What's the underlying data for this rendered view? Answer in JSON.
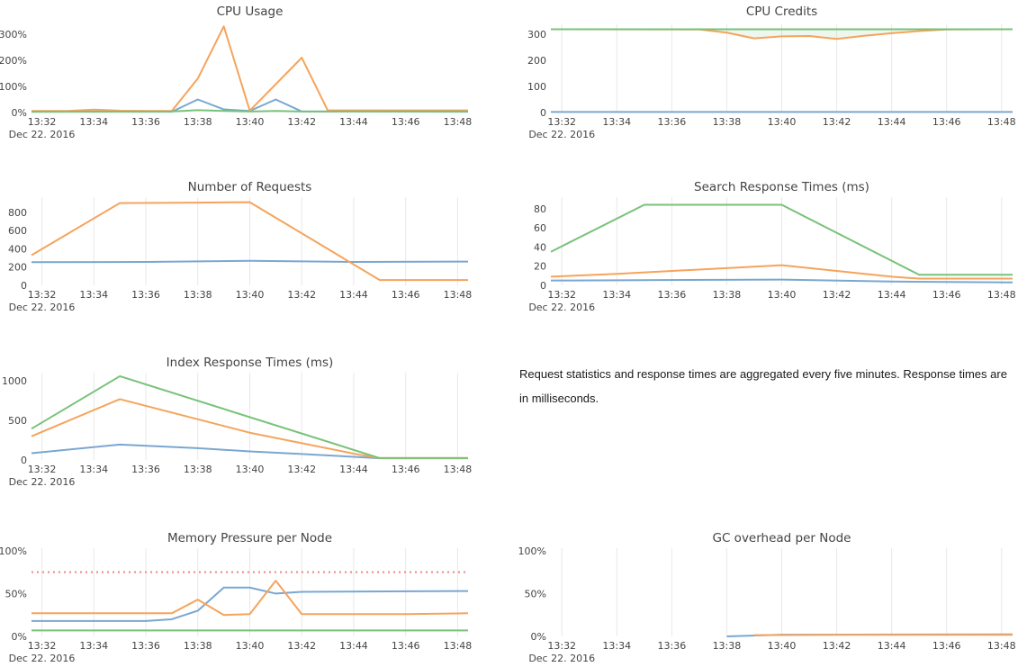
{
  "page": {
    "background": "#ffffff"
  },
  "note": {
    "text": "Request statistics and response times are aggregated every five minutes. Response times are in milliseconds."
  },
  "colors": {
    "blue": "#7aa7d2",
    "orange": "#f5a45c",
    "green": "#78c279",
    "threshold": "#ee8585",
    "grid": "#e8e8e8",
    "text": "#444444",
    "tick_text": "#444444"
  },
  "axis": {
    "date_label": "Dec 22. 2016",
    "x_range": [
      31.6,
      48.4
    ],
    "x_ticks": [
      {
        "m": 32,
        "label": "13:32"
      },
      {
        "m": 34,
        "label": "13:34"
      },
      {
        "m": 36,
        "label": "13:36"
      },
      {
        "m": 38,
        "label": "13:38"
      },
      {
        "m": 40,
        "label": "13:40"
      },
      {
        "m": 42,
        "label": "13:42"
      },
      {
        "m": 44,
        "label": "13:44"
      },
      {
        "m": 46,
        "label": "13:46"
      },
      {
        "m": 48,
        "label": "13:48"
      }
    ]
  },
  "chart_data": [
    {
      "id": "cpu-usage",
      "type": "line",
      "title": "CPU Usage",
      "col": "left",
      "row": 0,
      "grid": false,
      "ylim": [
        0,
        338
      ],
      "y_ticks": [
        {
          "value": 0,
          "label": "0%"
        },
        {
          "value": 100,
          "label": "100%"
        },
        {
          "value": 200,
          "label": "200%"
        },
        {
          "value": 300,
          "label": "300%"
        }
      ],
      "series": [
        {
          "name": "blue",
          "color_key": "blue",
          "points": [
            [
              31.6,
              3
            ],
            [
              37,
              3
            ],
            [
              38,
              50
            ],
            [
              39,
              12
            ],
            [
              40,
              6
            ],
            [
              41,
              50
            ],
            [
              42,
              4
            ],
            [
              48.4,
              3
            ]
          ]
        },
        {
          "name": "orange",
          "color_key": "orange",
          "points": [
            [
              31.6,
              6
            ],
            [
              33,
              6
            ],
            [
              34,
              11
            ],
            [
              35,
              7
            ],
            [
              36,
              6
            ],
            [
              37,
              6
            ],
            [
              38,
              130
            ],
            [
              39,
              330
            ],
            [
              40,
              7
            ],
            [
              42,
              210
            ],
            [
              43,
              8
            ],
            [
              44,
              8
            ],
            [
              48.4,
              8
            ]
          ]
        },
        {
          "name": "green",
          "color_key": "green",
          "points": [
            [
              31.6,
              3
            ],
            [
              37,
              4
            ],
            [
              38,
              9
            ],
            [
              39,
              6
            ],
            [
              40,
              4
            ],
            [
              41,
              6
            ],
            [
              42,
              4
            ],
            [
              48.4,
              4
            ]
          ]
        }
      ]
    },
    {
      "id": "cpu-credits",
      "type": "line",
      "title": "CPU Credits",
      "col": "right",
      "row": 0,
      "grid": true,
      "ylim": [
        0,
        338
      ],
      "y_ticks": [
        {
          "value": 0,
          "label": "0"
        },
        {
          "value": 100,
          "label": "100"
        },
        {
          "value": 200,
          "label": "200"
        },
        {
          "value": 300,
          "label": "300"
        }
      ],
      "series": [
        {
          "name": "blue",
          "color_key": "blue",
          "points": [
            [
              31.6,
              2
            ],
            [
              48.4,
              2
            ]
          ]
        },
        {
          "name": "orange",
          "color_key": "orange",
          "fill_above": true,
          "points": [
            [
              31.6,
              319
            ],
            [
              37,
              318
            ],
            [
              38,
              306
            ],
            [
              39,
              284
            ],
            [
              40,
              292
            ],
            [
              41,
              293
            ],
            [
              42,
              282
            ],
            [
              43,
              294
            ],
            [
              44,
              304
            ],
            [
              45,
              312
            ],
            [
              46,
              318
            ],
            [
              48.4,
              319
            ]
          ]
        },
        {
          "name": "green",
          "color_key": "green",
          "points": [
            [
              31.6,
              319
            ],
            [
              48.4,
              319
            ]
          ]
        }
      ]
    },
    {
      "id": "number-of-requests",
      "type": "line",
      "title": "Number of Requests",
      "col": "left",
      "row": 1,
      "grid": true,
      "ylim": [
        0,
        965
      ],
      "y_ticks": [
        {
          "value": 0,
          "label": "0"
        },
        {
          "value": 200,
          "label": "200"
        },
        {
          "value": 400,
          "label": "400"
        },
        {
          "value": 600,
          "label": "600"
        },
        {
          "value": 800,
          "label": "800"
        }
      ],
      "series": [
        {
          "name": "blue",
          "color_key": "blue",
          "points": [
            [
              31.6,
              253
            ],
            [
              36,
              256
            ],
            [
              40,
              268
            ],
            [
              44,
              256
            ],
            [
              48.4,
              260
            ]
          ]
        },
        {
          "name": "orange",
          "color_key": "orange",
          "points": [
            [
              31.6,
              330
            ],
            [
              35,
              900
            ],
            [
              38,
              905
            ],
            [
              40,
              910
            ],
            [
              45,
              58
            ],
            [
              48.4,
              58
            ]
          ]
        }
      ]
    },
    {
      "id": "search-response-times",
      "type": "line",
      "title": "Search Response Times (ms)",
      "col": "right",
      "row": 1,
      "grid": true,
      "ylim": [
        0,
        92
      ],
      "y_ticks": [
        {
          "value": 0,
          "label": "0"
        },
        {
          "value": 20,
          "label": "20"
        },
        {
          "value": 40,
          "label": "40"
        },
        {
          "value": 60,
          "label": "60"
        },
        {
          "value": 80,
          "label": "80"
        }
      ],
      "series": [
        {
          "name": "blue",
          "color_key": "blue",
          "points": [
            [
              31.6,
              5
            ],
            [
              40,
              6
            ],
            [
              44,
              4
            ],
            [
              48.4,
              3
            ]
          ]
        },
        {
          "name": "orange",
          "color_key": "orange",
          "points": [
            [
              31.6,
              9
            ],
            [
              34,
              12
            ],
            [
              38,
              18
            ],
            [
              40,
              21
            ],
            [
              42,
              15
            ],
            [
              44,
              9
            ],
            [
              45,
              7
            ],
            [
              48.4,
              7
            ]
          ]
        },
        {
          "name": "green",
          "color_key": "green",
          "points": [
            [
              31.6,
              35
            ],
            [
              35,
              84
            ],
            [
              40,
              84
            ],
            [
              45,
              11
            ],
            [
              48.4,
              11
            ]
          ]
        }
      ]
    },
    {
      "id": "index-response-times",
      "type": "line",
      "title": "Index Response Times (ms)",
      "col": "left",
      "row": 2,
      "grid": true,
      "ylim": [
        0,
        1105
      ],
      "y_ticks": [
        {
          "value": 0,
          "label": "0"
        },
        {
          "value": 500,
          "label": "500"
        },
        {
          "value": 1000,
          "label": "1000"
        }
      ],
      "series": [
        {
          "name": "blue",
          "color_key": "blue",
          "points": [
            [
              31.6,
              85
            ],
            [
              35,
              195
            ],
            [
              38,
              150
            ],
            [
              40,
              108
            ],
            [
              42,
              75
            ],
            [
              44,
              40
            ],
            [
              45,
              22
            ],
            [
              48.4,
              22
            ]
          ]
        },
        {
          "name": "orange",
          "color_key": "orange",
          "points": [
            [
              31.6,
              300
            ],
            [
              35,
              770
            ],
            [
              40,
              345
            ],
            [
              44,
              80
            ],
            [
              45,
              24
            ],
            [
              48.4,
              24
            ]
          ]
        },
        {
          "name": "green",
          "color_key": "green",
          "points": [
            [
              31.6,
              395
            ],
            [
              35,
              1060
            ],
            [
              45,
              24
            ],
            [
              48.4,
              24
            ]
          ]
        }
      ]
    },
    {
      "id": "memory-pressure",
      "type": "line",
      "title": "Memory Pressure per Node",
      "col": "left",
      "row": 3,
      "grid": true,
      "ylim": [
        0,
        103
      ],
      "y_ticks": [
        {
          "value": 0,
          "label": "0%"
        },
        {
          "value": 50,
          "label": "50%"
        },
        {
          "value": 100,
          "label": "100%"
        }
      ],
      "threshold": {
        "value": 75,
        "color_key": "threshold",
        "style": "dotted"
      },
      "series": [
        {
          "name": "green",
          "color_key": "green",
          "points": [
            [
              31.6,
              7
            ],
            [
              48.4,
              7
            ]
          ]
        },
        {
          "name": "blue",
          "color_key": "blue",
          "points": [
            [
              31.6,
              18
            ],
            [
              36,
              18
            ],
            [
              37,
              20
            ],
            [
              38,
              30
            ],
            [
              39,
              57
            ],
            [
              40,
              57
            ],
            [
              41,
              50
            ],
            [
              42,
              52
            ],
            [
              48.4,
              53
            ]
          ]
        },
        {
          "name": "orange",
          "color_key": "orange",
          "points": [
            [
              31.6,
              27
            ],
            [
              37,
              27
            ],
            [
              38,
              43
            ],
            [
              39,
              25
            ],
            [
              40,
              26
            ],
            [
              41,
              65
            ],
            [
              42,
              26
            ],
            [
              46,
              26
            ],
            [
              48.4,
              27
            ]
          ]
        }
      ]
    },
    {
      "id": "gc-overhead",
      "type": "line",
      "title": "GC overhead per Node",
      "col": "right",
      "row": 3,
      "grid": true,
      "ylim": [
        0,
        103
      ],
      "y_ticks": [
        {
          "value": 0,
          "label": "0%"
        },
        {
          "value": 50,
          "label": "50%"
        },
        {
          "value": 100,
          "label": "100%"
        }
      ],
      "series": [
        {
          "name": "blue",
          "color_key": "blue",
          "points": [
            [
              38,
              0
            ],
            [
              40,
              2
            ],
            [
              48.4,
              2.3
            ]
          ]
        },
        {
          "name": "orange",
          "color_key": "orange",
          "points": [
            [
              39,
              1.4
            ],
            [
              42,
              1.8
            ],
            [
              48.4,
              1.8
            ]
          ]
        }
      ]
    }
  ]
}
